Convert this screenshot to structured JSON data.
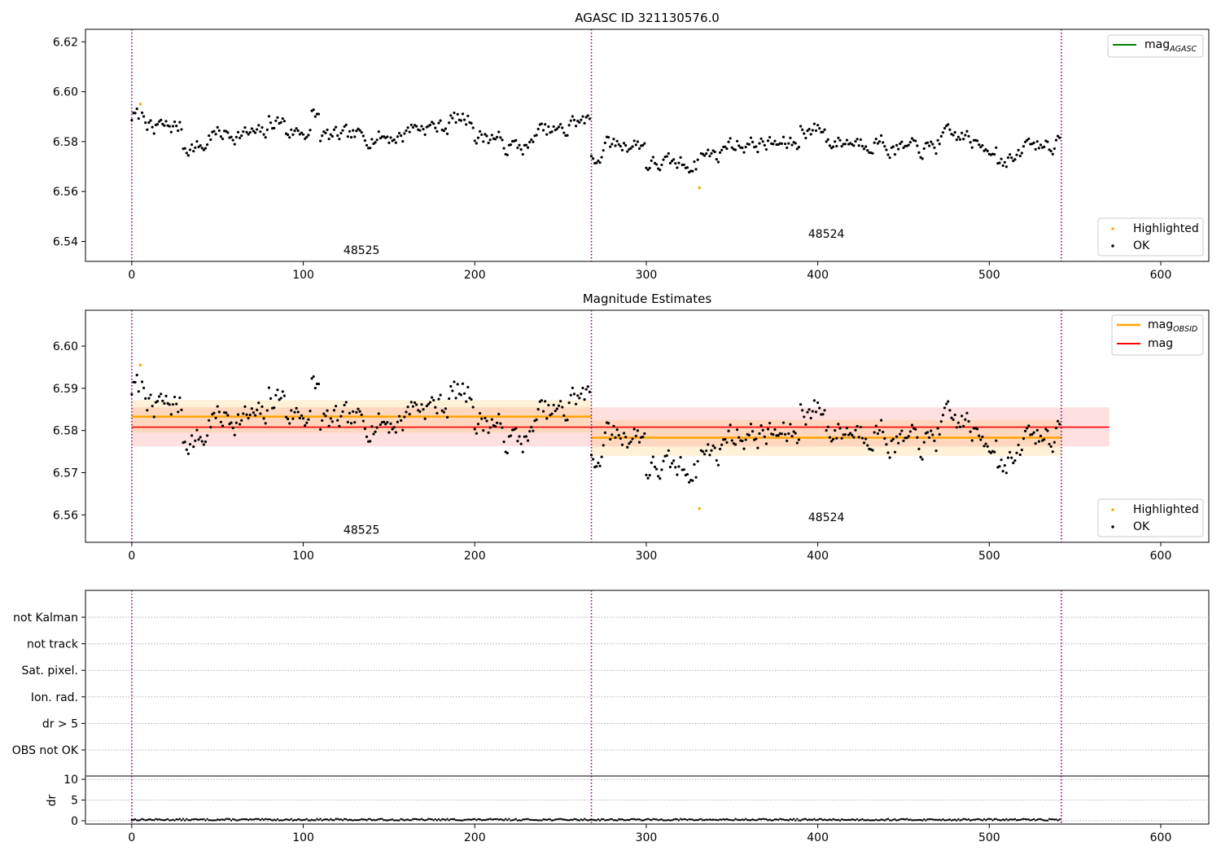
{
  "chart_data": [
    {
      "type": "scatter",
      "title": "AGASC ID 321130576.0",
      "ylim": [
        6.532,
        6.625
      ],
      "xlim": [
        -27,
        628
      ],
      "x_ticks": [
        0,
        100,
        200,
        300,
        400,
        500,
        600
      ],
      "y_ticks": [
        6.54,
        6.56,
        6.58,
        6.6,
        6.62
      ],
      "y_tick_labels": [
        "6.54",
        "6.56",
        "6.58",
        "6.60",
        "6.62"
      ],
      "boundaries": [
        0,
        268,
        542
      ],
      "obsid_labels": [
        {
          "text": "48525",
          "x": 134,
          "y": 6.535
        },
        {
          "text": "48524",
          "x": 405,
          "y": 6.5415
        }
      ],
      "series": [
        {
          "name": "Highlighted",
          "color": "#ffa500",
          "points": [
            [
              5,
              6.595
            ],
            [
              331,
              6.5615
            ]
          ]
        },
        {
          "name": "OK",
          "color": "#000000",
          "generated": {
            "start": 0,
            "end": 542,
            "seed": 7
          }
        }
      ],
      "lines": [
        {
          "name": "mag",
          "subscript": "AGASC",
          "color": "#008000",
          "show_on_plot": false
        }
      ],
      "legends": {
        "top_right": [
          "mag_AGASC"
        ],
        "bottom_right": [
          "Highlighted",
          "OK"
        ]
      }
    },
    {
      "type": "scatter",
      "title": "Magnitude Estimates",
      "ylim": [
        6.5535,
        6.6085
      ],
      "xlim": [
        -27,
        628
      ],
      "x_ticks": [
        0,
        100,
        200,
        300,
        400,
        500,
        600
      ],
      "y_ticks": [
        6.56,
        6.57,
        6.58,
        6.59,
        6.6
      ],
      "y_tick_labels": [
        "6.56",
        "6.57",
        "6.58",
        "6.59",
        "6.60"
      ],
      "boundaries": [
        0,
        268,
        542
      ],
      "obsid_labels": [
        {
          "text": "48525",
          "x": 134,
          "y": 6.5555
        },
        {
          "text": "48524",
          "x": 405,
          "y": 6.5585
        }
      ],
      "bands": [
        {
          "color": "#ff0000",
          "opacity": 0.12,
          "x": [
            0,
            570
          ],
          "y": [
            6.5762,
            6.5855
          ]
        },
        {
          "color": "#ffa500",
          "opacity": 0.15,
          "x": [
            0,
            268
          ],
          "y": [
            6.5795,
            6.5872
          ]
        },
        {
          "color": "#ffa500",
          "opacity": 0.15,
          "x": [
            268,
            542
          ],
          "y": [
            6.574,
            6.5825
          ]
        }
      ],
      "lines": [
        {
          "name": "mag",
          "subscript": "OBSID",
          "color": "#ffa500",
          "segments": [
            [
              0,
              268,
              6.5833
            ],
            [
              268,
              542,
              6.5783
            ]
          ]
        },
        {
          "name": "mag",
          "color": "#ff0000",
          "segments": [
            [
              0,
              570,
              6.5808
            ]
          ]
        }
      ],
      "series": [
        {
          "name": "Highlighted",
          "color": "#ffa500",
          "points": [
            [
              5,
              6.5955
            ],
            [
              331,
              6.5615
            ]
          ]
        },
        {
          "name": "OK",
          "color": "#000000",
          "generated": {
            "start": 0,
            "end": 542,
            "seed": 7
          }
        }
      ],
      "legends": {
        "top_right": [
          "mag_OBSID",
          "mag"
        ],
        "bottom_right": [
          "Highlighted",
          "OK"
        ]
      }
    },
    {
      "type": "table",
      "xlim": [
        -27,
        628
      ],
      "boundaries": [
        0,
        268,
        542
      ],
      "flag_rows": [
        "not Kalman",
        "not track",
        "Sat. pixel.",
        "Ion. rad.",
        "dr > 5",
        "OBS not OK"
      ]
    },
    {
      "type": "scatter",
      "ylabel": "dr",
      "xlim": [
        -27,
        628
      ],
      "ylim": [
        -0.8,
        10.8
      ],
      "x_ticks": [
        0,
        100,
        200,
        300,
        400,
        500,
        600
      ],
      "y_ticks": [
        0,
        5,
        10
      ],
      "y_tick_labels": [
        "0",
        "5",
        "10"
      ],
      "boundaries": [
        0,
        268,
        542
      ],
      "series": [
        {
          "name": "dr",
          "color": "#000000",
          "range": [
            0,
            542
          ],
          "value_range": [
            0.05,
            0.45
          ]
        }
      ]
    }
  ]
}
